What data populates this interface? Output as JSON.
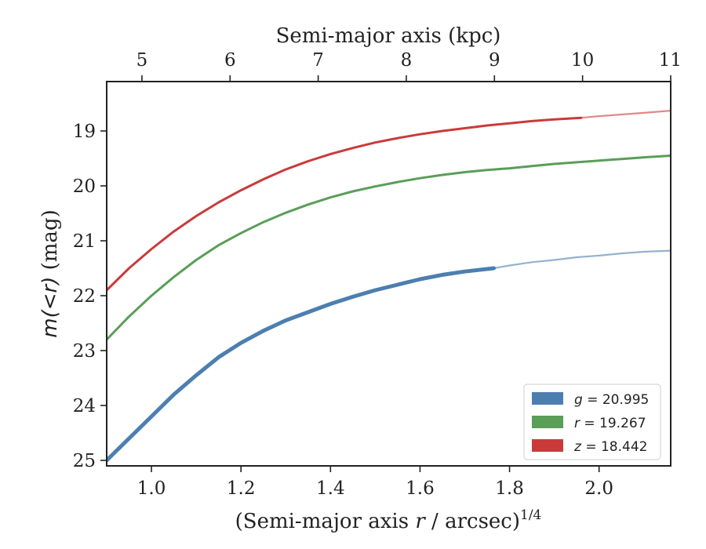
{
  "chart_data": {
    "type": "line",
    "xlabel": "(Semi-major axis ",
    "xlabel_var": "r",
    "xlabel_tail": " / arcsec)",
    "xlabel_exp": "1/4",
    "ylabel_var": "m(<r)",
    "ylabel_unit": " (mag)",
    "top_xlabel": "Semi-major axis (kpc)",
    "xlim": [
      0.9,
      2.16
    ],
    "ylim": [
      25.1,
      18.1
    ],
    "y_inverted": true,
    "xticks": [
      1.0,
      1.2,
      1.4,
      1.6,
      1.8,
      2.0
    ],
    "xtick_labels": [
      "1.0",
      "1.2",
      "1.4",
      "1.6",
      "1.8",
      "2.0"
    ],
    "yticks": [
      19,
      20,
      21,
      22,
      23,
      24,
      25
    ],
    "ytick_labels": [
      "19",
      "20",
      "21",
      "22",
      "23",
      "24",
      "25"
    ],
    "top_ticks_kpc": [
      5,
      6,
      7,
      8,
      9,
      10,
      11
    ],
    "top_tick_labels": [
      "5",
      "6",
      "7",
      "8",
      "9",
      "10",
      "11"
    ],
    "grid": false,
    "legend_position": "lower-right",
    "series": [
      {
        "id": "g",
        "legend_var": "g",
        "legend_value": " = 20.995",
        "color": "#4c7fb0",
        "solid_until_x": 1.765,
        "x": [
          0.9,
          0.95,
          1.0,
          1.05,
          1.1,
          1.15,
          1.2,
          1.25,
          1.3,
          1.35,
          1.4,
          1.45,
          1.5,
          1.55,
          1.6,
          1.65,
          1.7,
          1.765,
          1.8,
          1.85,
          1.9,
          1.95,
          2.0,
          2.05,
          2.1,
          2.16
        ],
        "y": [
          25.0,
          24.6,
          24.2,
          23.8,
          23.45,
          23.12,
          22.86,
          22.64,
          22.45,
          22.3,
          22.15,
          22.02,
          21.9,
          21.8,
          21.7,
          21.62,
          21.56,
          21.5,
          21.45,
          21.39,
          21.35,
          21.3,
          21.27,
          21.23,
          21.2,
          21.18
        ]
      },
      {
        "id": "r",
        "legend_var": "r",
        "legend_value": " = 19.267",
        "color": "#5a9e58",
        "solid_until_x": 2.16,
        "x": [
          0.9,
          0.95,
          1.0,
          1.05,
          1.1,
          1.15,
          1.2,
          1.25,
          1.3,
          1.35,
          1.4,
          1.45,
          1.5,
          1.55,
          1.6,
          1.65,
          1.7,
          1.75,
          1.8,
          1.85,
          1.9,
          1.95,
          2.0,
          2.05,
          2.1,
          2.16
        ],
        "y": [
          22.8,
          22.38,
          22.0,
          21.66,
          21.35,
          21.08,
          20.86,
          20.66,
          20.49,
          20.34,
          20.21,
          20.1,
          20.01,
          19.93,
          19.86,
          19.8,
          19.75,
          19.71,
          19.68,
          19.64,
          19.6,
          19.57,
          19.54,
          19.51,
          19.48,
          19.45
        ]
      },
      {
        "id": "z",
        "legend_var": "z",
        "legend_value": " = 18.442",
        "color": "#cb3a3a",
        "solid_until_x": 1.96,
        "x": [
          0.9,
          0.95,
          1.0,
          1.05,
          1.1,
          1.15,
          1.2,
          1.25,
          1.3,
          1.35,
          1.4,
          1.45,
          1.5,
          1.55,
          1.6,
          1.65,
          1.7,
          1.75,
          1.8,
          1.85,
          1.9,
          1.96,
          2.0,
          2.05,
          2.1,
          2.16
        ],
        "y": [
          21.9,
          21.5,
          21.15,
          20.83,
          20.55,
          20.3,
          20.08,
          19.88,
          19.7,
          19.55,
          19.42,
          19.31,
          19.21,
          19.13,
          19.06,
          19.0,
          18.95,
          18.9,
          18.86,
          18.82,
          18.79,
          18.76,
          18.73,
          18.7,
          18.67,
          18.63
        ]
      }
    ]
  }
}
